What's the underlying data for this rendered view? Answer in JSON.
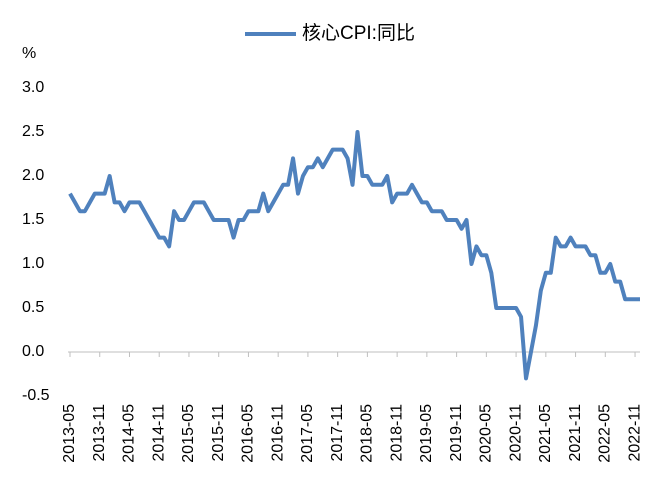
{
  "chart_data": {
    "type": "line",
    "y_label": "%",
    "categories": [
      "2013-05",
      null,
      null,
      null,
      null,
      null,
      "2013-11",
      null,
      null,
      null,
      null,
      null,
      "2014-05",
      null,
      null,
      null,
      null,
      null,
      "2014-11",
      null,
      null,
      null,
      null,
      null,
      "2015-05",
      null,
      null,
      null,
      null,
      null,
      "2015-11",
      null,
      null,
      null,
      null,
      null,
      "2016-05",
      null,
      null,
      null,
      null,
      null,
      "2016-11",
      null,
      null,
      null,
      null,
      null,
      "2017-05",
      null,
      null,
      null,
      null,
      null,
      "2017-11",
      null,
      null,
      null,
      null,
      null,
      "2018-05",
      null,
      null,
      null,
      null,
      null,
      "2018-11",
      null,
      null,
      null,
      null,
      null,
      "2019-05",
      null,
      null,
      null,
      null,
      null,
      "2019-11",
      null,
      null,
      null,
      null,
      null,
      "2020-05",
      null,
      null,
      null,
      null,
      null,
      "2020-11",
      null,
      null,
      null,
      null,
      null,
      "2021-05",
      null,
      null,
      null,
      null,
      null,
      "2021-11",
      null,
      null,
      null,
      null,
      null,
      "2022-05",
      null,
      null,
      null,
      null,
      null,
      "2022-11",
      null
    ],
    "series": [
      {
        "name": "核心CPI:同比",
        "color": "#4f81bd",
        "values": [
          1.8,
          1.7,
          1.6,
          1.6,
          1.7,
          1.8,
          1.8,
          1.8,
          2.0,
          1.7,
          1.7,
          1.6,
          1.7,
          1.7,
          1.7,
          1.6,
          1.5,
          1.4,
          1.3,
          1.3,
          1.2,
          1.6,
          1.5,
          1.5,
          1.6,
          1.7,
          1.7,
          1.7,
          1.6,
          1.5,
          1.5,
          1.5,
          1.5,
          1.3,
          1.5,
          1.5,
          1.6,
          1.6,
          1.6,
          1.8,
          1.6,
          1.7,
          1.8,
          1.9,
          1.9,
          2.2,
          1.8,
          2.0,
          2.1,
          2.1,
          2.2,
          2.1,
          2.2,
          2.3,
          2.3,
          2.3,
          2.2,
          1.9,
          2.5,
          2.0,
          2.0,
          1.9,
          1.9,
          1.9,
          2.0,
          1.7,
          1.8,
          1.8,
          1.8,
          1.9,
          1.8,
          1.7,
          1.7,
          1.6,
          1.6,
          1.6,
          1.5,
          1.5,
          1.5,
          1.4,
          1.5,
          1.0,
          1.2,
          1.1,
          1.1,
          0.9,
          0.5,
          0.5,
          0.5,
          0.5,
          0.5,
          0.4,
          -0.3,
          0.0,
          0.3,
          0.7,
          0.9,
          0.9,
          1.3,
          1.2,
          1.2,
          1.3,
          1.2,
          1.2,
          1.2,
          1.1,
          1.1,
          0.9,
          0.9,
          1.0,
          0.8,
          0.8,
          0.6,
          0.6,
          0.6,
          0.6
        ]
      }
    ],
    "ylim": [
      -0.5,
      3.0
    ],
    "yticks": [
      -0.5,
      {
        "value": 0,
        "label": "0.0"
      },
      0.5,
      {
        "value": 1,
        "label": "1.0"
      },
      1.5,
      {
        "value": 2,
        "label": "2.0"
      },
      2.5,
      {
        "value": 3,
        "label": "3.0"
      }
    ],
    "legend": "top"
  }
}
